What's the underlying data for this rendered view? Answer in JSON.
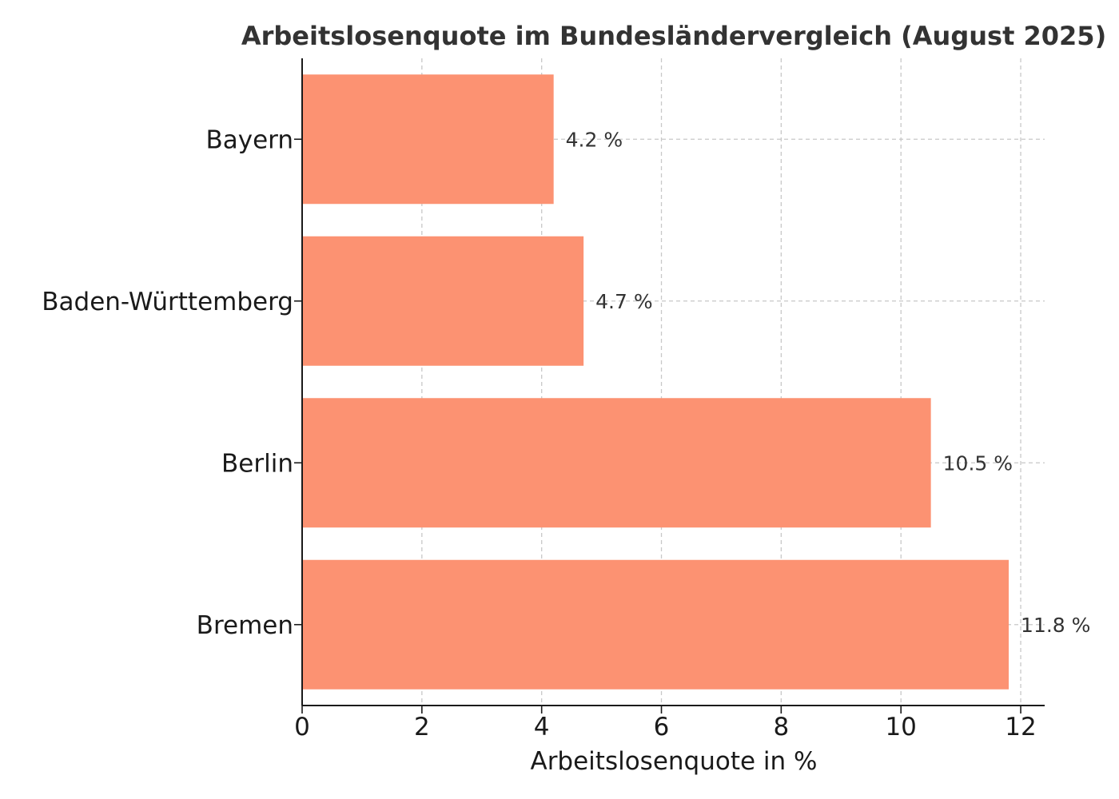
{
  "chart_data": {
    "type": "bar",
    "orientation": "horizontal",
    "title": "Arbeitslosenquote im Bundesländervergleich (August 2025)",
    "xlabel": "Arbeitslosenquote in %",
    "ylabel": "",
    "categories": [
      "Bayern",
      "Baden-Württemberg",
      "Berlin",
      "Bremen"
    ],
    "values": [
      4.2,
      4.7,
      10.5,
      11.8
    ],
    "value_labels": [
      "4.2 %",
      "4.7 %",
      "10.5 %",
      "11.8 %"
    ],
    "xlim": [
      0,
      12.4
    ],
    "xticks": [
      0,
      2,
      4,
      6,
      8,
      10,
      12
    ],
    "xtick_labels": [
      "0",
      "2",
      "4",
      "6",
      "8",
      "10",
      "12"
    ],
    "grid": true,
    "bar_color": "#fc9272",
    "legend": "none"
  }
}
